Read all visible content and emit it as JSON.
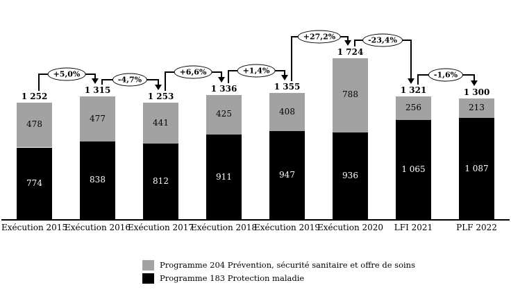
{
  "chart_data": {
    "type": "bar",
    "stacked": true,
    "title": "",
    "xlabel": "",
    "ylabel": "",
    "grid": false,
    "legend_position": "bottom",
    "ylim": [
      0,
      1800
    ],
    "categories": [
      "Exécution 2015",
      "Exécution 2016",
      "Exécution 2017",
      "Exécution 2018",
      "Exécution 2019",
      "Exécution 2020",
      "LFI 2021",
      "PLF 2022"
    ],
    "series": [
      {
        "name": "Programme 204 Prévention, sécurité sanitaire et offre de soins",
        "color": "#A2A2A2",
        "label_color": "#000000",
        "values": [
          478,
          477,
          441,
          425,
          408,
          788,
          256,
          213
        ],
        "labels": [
          "478",
          "477",
          "441",
          "425",
          "408",
          "788",
          "256",
          "213"
        ]
      },
      {
        "name": "Programme 183 Protection maladie",
        "color": "#000000",
        "label_color": "#ffffff",
        "values": [
          774,
          838,
          812,
          911,
          947,
          936,
          1065,
          1087
        ],
        "labels": [
          "774",
          "838",
          "812",
          "911",
          "947",
          "936",
          "1 065",
          "1 087"
        ]
      }
    ],
    "totals": {
      "values": [
        1252,
        1315,
        1253,
        1336,
        1355,
        1724,
        1321,
        1300
      ],
      "labels": [
        "1 252",
        "1 315",
        "1 253",
        "1 336",
        "1 355",
        "1 724",
        "1 321",
        "1 300"
      ]
    },
    "annotations": [
      {
        "from": 0,
        "to": 1,
        "label": "+5,0%"
      },
      {
        "from": 1,
        "to": 2,
        "label": "-4,7%"
      },
      {
        "from": 2,
        "to": 3,
        "label": "+6,6%"
      },
      {
        "from": 3,
        "to": 4,
        "label": "+1,4%"
      },
      {
        "from": 4,
        "to": 5,
        "label": "+27,2%"
      },
      {
        "from": 5,
        "to": 6,
        "label": "-23,4%"
      },
      {
        "from": 6,
        "to": 7,
        "label": "-1,6%"
      }
    ]
  },
  "legend": {
    "items": [
      {
        "label": "Programme 204 Prévention, sécurité sanitaire et offre de soins"
      },
      {
        "label": "Programme 183 Protection maladie"
      }
    ]
  }
}
